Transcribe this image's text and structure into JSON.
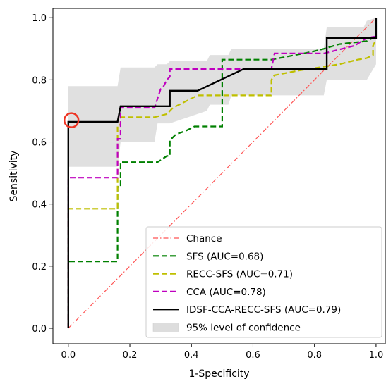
{
  "chart_data": {
    "type": "line",
    "title": "",
    "xlabel": "1-Specificity",
    "ylabel": "Sensitivity",
    "xlim": [
      -0.05,
      1.03
    ],
    "ylim": [
      -0.05,
      1.03
    ],
    "xticks": [
      0.0,
      0.2,
      0.4,
      0.6,
      0.8,
      1.0
    ],
    "yticks": [
      0.0,
      0.2,
      0.4,
      0.6,
      0.8,
      1.0
    ],
    "xtick_labels": [
      "0.0",
      "0.2",
      "0.4",
      "0.6",
      "0.8",
      "1.0"
    ],
    "ytick_labels": [
      "0.0",
      "0.2",
      "0.4",
      "0.6",
      "0.8",
      "1.0"
    ],
    "grid": false,
    "legend_position": "lower-right",
    "chance": {
      "label": "Chance",
      "color": "#ff5555",
      "x": [
        0.0,
        1.0
      ],
      "y": [
        0.0,
        1.0
      ]
    },
    "confidence_band": {
      "label": "95% level of confidence",
      "color": "#dddddd",
      "x": [
        0.0,
        0.01,
        0.16,
        0.17,
        0.28,
        0.29,
        0.32,
        0.33,
        0.45,
        0.46,
        0.52,
        0.53,
        0.83,
        0.84,
        0.96,
        0.97,
        1.0
      ],
      "upper": [
        0.78,
        0.78,
        0.78,
        0.84,
        0.84,
        0.85,
        0.85,
        0.86,
        0.86,
        0.88,
        0.88,
        0.9,
        0.9,
        0.97,
        0.97,
        0.99,
        1.0
      ],
      "lower": [
        0.52,
        0.52,
        0.52,
        0.6,
        0.6,
        0.66,
        0.66,
        0.66,
        0.7,
        0.72,
        0.72,
        0.75,
        0.75,
        0.8,
        0.8,
        0.8,
        0.85
      ]
    },
    "series": [
      {
        "name": "SFS (AUC=0.68)",
        "color": "#008000",
        "dash": "dashed",
        "x": [
          0.0,
          0.0,
          0.16,
          0.16,
          0.17,
          0.17,
          0.29,
          0.32,
          0.33,
          0.33,
          0.35,
          0.38,
          0.4,
          0.41,
          0.45,
          0.49,
          0.5,
          0.5,
          0.66,
          0.79,
          0.83,
          0.88,
          0.97,
          1.0
        ],
        "y": [
          0.0,
          0.215,
          0.215,
          0.455,
          0.455,
          0.535,
          0.535,
          0.555,
          0.555,
          0.605,
          0.625,
          0.635,
          0.645,
          0.65,
          0.65,
          0.65,
          0.65,
          0.865,
          0.865,
          0.89,
          0.9,
          0.915,
          0.925,
          0.94
        ]
      },
      {
        "name": "RECC-SFS (AUC=0.71)",
        "color": "#bfbf00",
        "dash": "dashed",
        "x": [
          0.0,
          0.0,
          0.16,
          0.16,
          0.17,
          0.17,
          0.28,
          0.32,
          0.34,
          0.36,
          0.4,
          0.42,
          0.49,
          0.66,
          0.66,
          0.67,
          0.75,
          0.88,
          0.94,
          0.97,
          0.99,
          0.99,
          1.0
        ],
        "y": [
          0.0,
          0.385,
          0.385,
          0.655,
          0.655,
          0.68,
          0.68,
          0.69,
          0.71,
          0.72,
          0.74,
          0.75,
          0.75,
          0.75,
          0.8,
          0.815,
          0.83,
          0.85,
          0.865,
          0.87,
          0.88,
          0.91,
          0.93
        ]
      },
      {
        "name": "CCA (AUC=0.78)",
        "color": "#bf00bf",
        "dash": "dashed",
        "x": [
          0.0,
          0.0,
          0.16,
          0.16,
          0.17,
          0.17,
          0.28,
          0.29,
          0.3,
          0.31,
          0.32,
          0.33,
          0.33,
          0.5,
          0.66,
          0.67,
          0.82,
          0.83,
          0.93,
          0.97,
          1.0
        ],
        "y": [
          0.0,
          0.485,
          0.485,
          0.61,
          0.61,
          0.71,
          0.71,
          0.74,
          0.77,
          0.78,
          0.8,
          0.81,
          0.835,
          0.835,
          0.835,
          0.885,
          0.885,
          0.885,
          0.91,
          0.935,
          0.94
        ]
      },
      {
        "name": "IDSF-CCA-RECC-SFS (AUC=0.79)",
        "color": "#000000",
        "dash": "solid",
        "x": [
          0.0,
          0.0,
          0.01,
          0.01,
          0.16,
          0.17,
          0.33,
          0.33,
          0.42,
          0.57,
          0.83,
          0.83,
          0.84,
          0.84,
          0.99,
          0.99,
          1.0,
          1.0
        ],
        "y": [
          0.0,
          0.665,
          0.665,
          0.665,
          0.665,
          0.715,
          0.715,
          0.765,
          0.765,
          0.835,
          0.835,
          0.835,
          0.835,
          0.935,
          0.935,
          0.935,
          0.935,
          1.0
        ]
      }
    ],
    "highlight_point": {
      "x": 0.01,
      "y": 0.67,
      "color": "#ee3322"
    }
  }
}
